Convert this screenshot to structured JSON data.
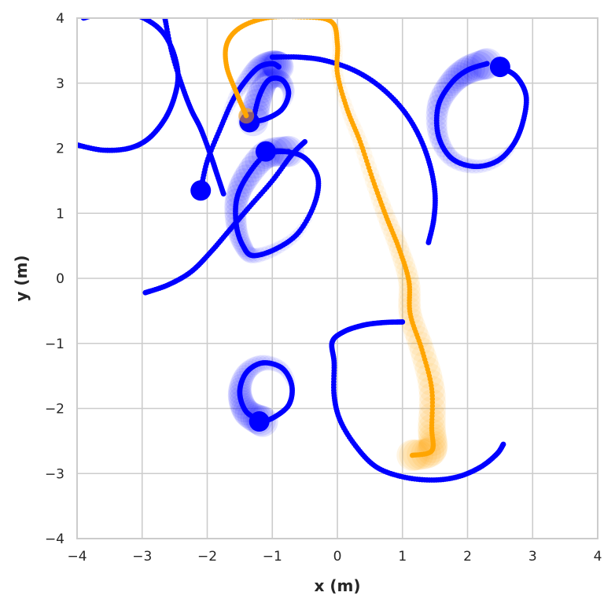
{
  "chart_data": {
    "type": "scatter",
    "title": "",
    "xlabel": "x (m)",
    "ylabel": "y (m)",
    "xlim": [
      -4,
      4
    ],
    "ylim": [
      -4,
      4
    ],
    "xticks": [
      -4,
      -3,
      -2,
      -1,
      0,
      1,
      2,
      3,
      4
    ],
    "yticks": [
      -4,
      -3,
      -2,
      -1,
      0,
      1,
      2,
      3,
      4
    ],
    "grid": true,
    "colors": {
      "others": "#0000ff",
      "ego": "#ffa500",
      "grid": "#cccccc",
      "spine": "#cccccc"
    },
    "series": [
      {
        "role": "other",
        "color": "#0000ff",
        "end_marker": false,
        "points": [
          [
            -4.0,
            2.05
          ],
          [
            -3.6,
            1.97
          ],
          [
            -3.2,
            2.0
          ],
          [
            -2.9,
            2.15
          ],
          [
            -2.65,
            2.45
          ],
          [
            -2.5,
            2.8
          ],
          [
            -2.45,
            3.15
          ],
          [
            -2.55,
            3.55
          ],
          [
            -2.75,
            3.85
          ],
          [
            -3.1,
            4.05
          ],
          [
            -3.5,
            4.1
          ],
          [
            -3.9,
            4.0
          ]
        ]
      },
      {
        "role": "other",
        "color": "#0000ff",
        "end_marker": false,
        "points": [
          [
            -1.0,
            3.4
          ],
          [
            -0.6,
            3.4
          ],
          [
            -0.2,
            3.35
          ],
          [
            0.25,
            3.2
          ],
          [
            0.65,
            2.95
          ],
          [
            1.0,
            2.6
          ],
          [
            1.25,
            2.2
          ],
          [
            1.42,
            1.75
          ],
          [
            1.5,
            1.3
          ],
          [
            1.48,
            0.9
          ],
          [
            1.4,
            0.55
          ]
        ]
      },
      {
        "role": "other",
        "color": "#0000ff",
        "end_marker": false,
        "points": [
          [
            -2.95,
            -0.22
          ],
          [
            -2.6,
            -0.1
          ],
          [
            -2.25,
            0.1
          ],
          [
            -1.95,
            0.4
          ],
          [
            -1.65,
            0.75
          ],
          [
            -1.35,
            1.1
          ],
          [
            -1.0,
            1.5
          ],
          [
            -0.7,
            1.9
          ],
          [
            -0.5,
            2.1
          ]
        ]
      },
      {
        "role": "other",
        "color": "#0000ff",
        "end_marker": false,
        "points": [
          [
            -2.65,
            4.0
          ],
          [
            -2.55,
            3.5
          ],
          [
            -2.4,
            3.0
          ],
          [
            -2.25,
            2.6
          ],
          [
            -2.1,
            2.3
          ],
          [
            -1.95,
            1.9
          ],
          [
            -1.85,
            1.6
          ],
          [
            -1.75,
            1.3
          ]
        ]
      },
      {
        "role": "other",
        "color": "#0000ff",
        "end_marker": false,
        "points": [
          [
            1.0,
            -0.67
          ],
          [
            0.7,
            -0.68
          ],
          [
            0.4,
            -0.72
          ],
          [
            0.1,
            -0.82
          ],
          [
            -0.08,
            -0.98
          ],
          [
            -0.05,
            -1.3
          ],
          [
            -0.05,
            -1.8
          ],
          [
            0.05,
            -2.2
          ],
          [
            0.3,
            -2.6
          ],
          [
            0.6,
            -2.9
          ],
          [
            1.0,
            -3.05
          ],
          [
            1.45,
            -3.1
          ],
          [
            1.85,
            -3.05
          ],
          [
            2.2,
            -2.9
          ],
          [
            2.45,
            -2.7
          ],
          [
            2.55,
            -2.55
          ]
        ]
      },
      {
        "role": "other",
        "color": "#0000ff",
        "end_marker": true,
        "points": [
          [
            -2.1,
            1.35
          ],
          [
            -2.0,
            1.8
          ],
          [
            -1.8,
            2.3
          ],
          [
            -1.6,
            2.75
          ],
          [
            -1.4,
            3.05
          ],
          [
            -1.2,
            3.25
          ],
          [
            -1.0,
            3.3
          ],
          [
            -0.9,
            3.25
          ]
        ]
      },
      {
        "role": "other",
        "color": "#0000ff",
        "end_marker": true,
        "points": [
          [
            -1.35,
            2.4
          ],
          [
            -1.1,
            2.45
          ],
          [
            -0.85,
            2.6
          ],
          [
            -0.75,
            2.85
          ],
          [
            -0.85,
            3.05
          ],
          [
            -1.05,
            3.05
          ],
          [
            -1.2,
            2.8
          ],
          [
            -1.3,
            2.4
          ]
        ]
      },
      {
        "role": "other",
        "color": "#0000ff",
        "end_marker": true,
        "points": [
          [
            -1.1,
            1.95
          ],
          [
            -0.8,
            1.95
          ],
          [
            -0.5,
            1.85
          ],
          [
            -0.3,
            1.55
          ],
          [
            -0.35,
            1.15
          ],
          [
            -0.6,
            0.7
          ],
          [
            -0.95,
            0.45
          ],
          [
            -1.3,
            0.35
          ],
          [
            -1.45,
            0.5
          ],
          [
            -1.55,
            0.8
          ],
          [
            -1.55,
            1.2
          ],
          [
            -1.4,
            1.55
          ],
          [
            -1.1,
            1.9
          ],
          [
            -0.75,
            1.95
          ]
        ]
      },
      {
        "role": "other",
        "color": "#0000ff",
        "end_marker": true,
        "points": [
          [
            -1.2,
            -2.2
          ],
          [
            -1.0,
            -2.15
          ],
          [
            -0.75,
            -1.95
          ],
          [
            -0.7,
            -1.65
          ],
          [
            -0.85,
            -1.38
          ],
          [
            -1.15,
            -1.3
          ],
          [
            -1.4,
            -1.45
          ],
          [
            -1.5,
            -1.75
          ],
          [
            -1.4,
            -2.05
          ],
          [
            -1.15,
            -2.2
          ]
        ]
      },
      {
        "role": "other",
        "color": "#0000ff",
        "end_marker": true,
        "points": [
          [
            2.5,
            3.25
          ],
          [
            2.75,
            3.1
          ],
          [
            2.9,
            2.8
          ],
          [
            2.85,
            2.4
          ],
          [
            2.7,
            2.05
          ],
          [
            2.45,
            1.8
          ],
          [
            2.1,
            1.72
          ],
          [
            1.75,
            1.85
          ],
          [
            1.55,
            2.2
          ],
          [
            1.55,
            2.65
          ],
          [
            1.75,
            3.0
          ],
          [
            2.0,
            3.2
          ],
          [
            2.3,
            3.3
          ]
        ]
      },
      {
        "role": "ego",
        "color": "#ffa500",
        "end_marker": true,
        "points": [
          [
            -1.4,
            2.5
          ],
          [
            -1.55,
            2.85
          ],
          [
            -1.7,
            3.25
          ],
          [
            -1.7,
            3.6
          ],
          [
            -1.5,
            3.85
          ],
          [
            -1.1,
            4.0
          ],
          [
            -0.6,
            4.02
          ],
          [
            -0.1,
            3.95
          ],
          [
            0.0,
            3.6
          ],
          [
            0.0,
            3.15
          ],
          [
            0.15,
            2.6
          ],
          [
            0.35,
            2.1
          ],
          [
            0.55,
            1.5
          ],
          [
            0.75,
            0.95
          ],
          [
            0.95,
            0.45
          ],
          [
            1.1,
            -0.05
          ],
          [
            1.12,
            -0.55
          ],
          [
            1.3,
            -1.1
          ],
          [
            1.45,
            -1.7
          ],
          [
            1.45,
            -2.3
          ],
          [
            1.45,
            -2.65
          ],
          [
            1.15,
            -2.72
          ]
        ]
      }
    ]
  }
}
